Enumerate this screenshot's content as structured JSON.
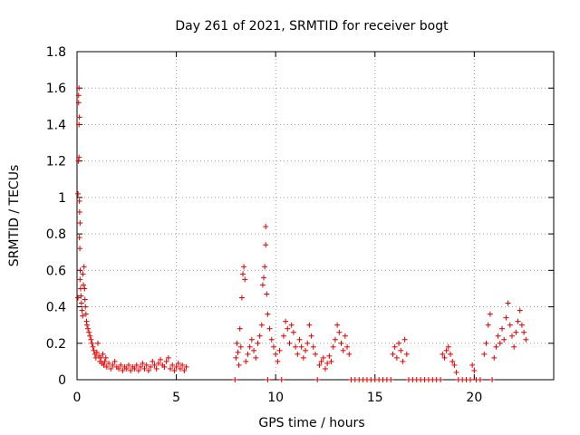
{
  "chart_data": {
    "type": "scatter",
    "title": "Day 261 of 2021, SRMTID for receiver bogt",
    "xlabel": "GPS time / hours",
    "ylabel": "SRMTID / TECUs",
    "xlim": [
      0,
      24
    ],
    "ylim": [
      0,
      1.8
    ],
    "xticks": [
      0,
      5,
      10,
      15,
      20
    ],
    "xtick_labels": [
      "0",
      "5",
      "10",
      "15",
      "20"
    ],
    "yticks": [
      0,
      0.2,
      0.4,
      0.6,
      0.8,
      1,
      1.2,
      1.4,
      1.6,
      1.8
    ],
    "ytick_labels": [
      "0",
      "0.2",
      "0.4",
      "0.6",
      "0.8",
      "1",
      "1.2",
      "1.4",
      "1.6",
      "1.8"
    ],
    "grid": true,
    "marker": "+",
    "series": [
      {
        "name": "SRMTID",
        "color": "#e00000",
        "points": [
          [
            0.05,
            0.45
          ],
          [
            0.05,
            1.02
          ],
          [
            0.07,
            1.2
          ],
          [
            0.08,
            1.52
          ],
          [
            0.08,
            1.56
          ],
          [
            0.1,
            1.6
          ],
          [
            0.1,
            1.4
          ],
          [
            0.12,
            1.44
          ],
          [
            0.1,
            1.22
          ],
          [
            0.12,
            0.98
          ],
          [
            0.13,
            0.92
          ],
          [
            0.15,
            0.86
          ],
          [
            0.12,
            0.78
          ],
          [
            0.14,
            0.72
          ],
          [
            0.16,
            0.6
          ],
          [
            0.15,
            0.55
          ],
          [
            0.18,
            0.5
          ],
          [
            0.2,
            0.46
          ],
          [
            0.22,
            0.42
          ],
          [
            0.25,
            0.38
          ],
          [
            0.28,
            0.35
          ],
          [
            0.3,
            0.58
          ],
          [
            0.32,
            0.52
          ],
          [
            0.35,
            0.62
          ],
          [
            0.38,
            0.5
          ],
          [
            0.4,
            0.44
          ],
          [
            0.42,
            0.4
          ],
          [
            0.45,
            0.36
          ],
          [
            0.48,
            0.32
          ],
          [
            0.5,
            0.3
          ],
          [
            0.55,
            0.28
          ],
          [
            0.6,
            0.26
          ],
          [
            0.65,
            0.24
          ],
          [
            0.7,
            0.22
          ],
          [
            0.75,
            0.2
          ],
          [
            0.8,
            0.18
          ],
          [
            0.85,
            0.16
          ],
          [
            0.9,
            0.14
          ],
          [
            0.95,
            0.12
          ],
          [
            1.0,
            0.15
          ],
          [
            1.05,
            0.2
          ],
          [
            1.1,
            0.13
          ],
          [
            1.15,
            0.1
          ],
          [
            1.2,
            0.12
          ],
          [
            1.25,
            0.09
          ],
          [
            1.3,
            0.14
          ],
          [
            1.35,
            0.08
          ],
          [
            1.4,
            0.1
          ],
          [
            1.45,
            0.12
          ],
          [
            1.5,
            0.07
          ],
          [
            1.6,
            0.09
          ],
          [
            1.7,
            0.06
          ],
          [
            1.8,
            0.08
          ],
          [
            1.9,
            0.1
          ],
          [
            2.0,
            0.07
          ],
          [
            2.1,
            0.06
          ],
          [
            2.2,
            0.08
          ],
          [
            2.3,
            0.05
          ],
          [
            2.4,
            0.07
          ],
          [
            2.5,
            0.06
          ],
          [
            2.6,
            0.08
          ],
          [
            2.7,
            0.05
          ],
          [
            2.8,
            0.07
          ],
          [
            2.9,
            0.06
          ],
          [
            3.0,
            0.08
          ],
          [
            3.1,
            0.05
          ],
          [
            3.2,
            0.07
          ],
          [
            3.3,
            0.09
          ],
          [
            3.4,
            0.06
          ],
          [
            3.5,
            0.08
          ],
          [
            3.6,
            0.05
          ],
          [
            3.7,
            0.07
          ],
          [
            3.8,
            0.1
          ],
          [
            3.9,
            0.08
          ],
          [
            4.0,
            0.06
          ],
          [
            4.1,
            0.09
          ],
          [
            4.2,
            0.11
          ],
          [
            4.3,
            0.08
          ],
          [
            4.4,
            0.07
          ],
          [
            4.5,
            0.1
          ],
          [
            4.6,
            0.12
          ],
          [
            4.7,
            0.06
          ],
          [
            4.8,
            0.08
          ],
          [
            4.9,
            0.05
          ],
          [
            5.0,
            0.07
          ],
          [
            5.1,
            0.09
          ],
          [
            5.2,
            0.06
          ],
          [
            5.3,
            0.08
          ],
          [
            5.4,
            0.05
          ],
          [
            5.5,
            0.07
          ],
          [
            7.95,
            0.0
          ],
          [
            8.0,
            0.12
          ],
          [
            8.05,
            0.2
          ],
          [
            8.1,
            0.15
          ],
          [
            8.15,
            0.08
          ],
          [
            8.2,
            0.28
          ],
          [
            8.25,
            0.18
          ],
          [
            8.3,
            0.45
          ],
          [
            8.35,
            0.58
          ],
          [
            8.4,
            0.62
          ],
          [
            8.45,
            0.55
          ],
          [
            8.5,
            0.1
          ],
          [
            8.6,
            0.14
          ],
          [
            8.7,
            0.18
          ],
          [
            8.8,
            0.22
          ],
          [
            8.9,
            0.16
          ],
          [
            9.0,
            0.12
          ],
          [
            9.1,
            0.2
          ],
          [
            9.2,
            0.24
          ],
          [
            9.3,
            0.3
          ],
          [
            9.35,
            0.52
          ],
          [
            9.4,
            0.56
          ],
          [
            9.45,
            0.62
          ],
          [
            9.5,
            0.74
          ],
          [
            9.5,
            0.84
          ],
          [
            9.55,
            0.47
          ],
          [
            9.6,
            0.36
          ],
          [
            9.6,
            0.0
          ],
          [
            9.7,
            0.28
          ],
          [
            9.8,
            0.22
          ],
          [
            9.9,
            0.18
          ],
          [
            10.0,
            0.14
          ],
          [
            10.1,
            0.1
          ],
          [
            10.2,
            0.16
          ],
          [
            10.3,
            0.0
          ],
          [
            10.4,
            0.24
          ],
          [
            10.5,
            0.32
          ],
          [
            10.6,
            0.28
          ],
          [
            10.7,
            0.2
          ],
          [
            10.8,
            0.3
          ],
          [
            10.9,
            0.26
          ],
          [
            11.0,
            0.18
          ],
          [
            11.1,
            0.14
          ],
          [
            11.2,
            0.22
          ],
          [
            11.3,
            0.18
          ],
          [
            11.4,
            0.12
          ],
          [
            11.5,
            0.16
          ],
          [
            11.6,
            0.2
          ],
          [
            11.7,
            0.3
          ],
          [
            11.8,
            0.24
          ],
          [
            11.9,
            0.18
          ],
          [
            12.0,
            0.14
          ],
          [
            12.1,
            0.0
          ],
          [
            12.2,
            0.08
          ],
          [
            12.3,
            0.1
          ],
          [
            12.4,
            0.12
          ],
          [
            12.5,
            0.06
          ],
          [
            12.6,
            0.09
          ],
          [
            12.7,
            0.13
          ],
          [
            12.8,
            0.1
          ],
          [
            12.9,
            0.18
          ],
          [
            13.0,
            0.22
          ],
          [
            13.1,
            0.3
          ],
          [
            13.2,
            0.26
          ],
          [
            13.3,
            0.2
          ],
          [
            13.4,
            0.16
          ],
          [
            13.5,
            0.24
          ],
          [
            13.6,
            0.18
          ],
          [
            13.7,
            0.14
          ],
          [
            13.8,
            0.0
          ],
          [
            14.0,
            0.0
          ],
          [
            14.2,
            0.0
          ],
          [
            14.4,
            0.0
          ],
          [
            14.6,
            0.0
          ],
          [
            14.8,
            0.0
          ],
          [
            15.0,
            0.0
          ],
          [
            15.2,
            0.0
          ],
          [
            15.4,
            0.0
          ],
          [
            15.6,
            0.0
          ],
          [
            15.8,
            0.0
          ],
          [
            15.9,
            0.14
          ],
          [
            16.0,
            0.18
          ],
          [
            16.1,
            0.12
          ],
          [
            16.2,
            0.2
          ],
          [
            16.3,
            0.16
          ],
          [
            16.4,
            0.1
          ],
          [
            16.5,
            0.22
          ],
          [
            16.6,
            0.14
          ],
          [
            16.7,
            0.0
          ],
          [
            16.9,
            0.0
          ],
          [
            17.1,
            0.0
          ],
          [
            17.3,
            0.0
          ],
          [
            17.5,
            0.0
          ],
          [
            17.7,
            0.0
          ],
          [
            17.9,
            0.0
          ],
          [
            18.1,
            0.0
          ],
          [
            18.3,
            0.0
          ],
          [
            18.4,
            0.14
          ],
          [
            18.5,
            0.12
          ],
          [
            18.6,
            0.16
          ],
          [
            18.7,
            0.18
          ],
          [
            18.8,
            0.14
          ],
          [
            18.9,
            0.1
          ],
          [
            19.0,
            0.08
          ],
          [
            19.1,
            0.04
          ],
          [
            19.2,
            0.0
          ],
          [
            19.4,
            0.0
          ],
          [
            19.6,
            0.0
          ],
          [
            19.8,
            0.0
          ],
          [
            19.9,
            0.08
          ],
          [
            20.0,
            0.05
          ],
          [
            20.1,
            0.0
          ],
          [
            20.3,
            0.0
          ],
          [
            20.5,
            0.14
          ],
          [
            20.6,
            0.2
          ],
          [
            20.7,
            0.3
          ],
          [
            20.8,
            0.36
          ],
          [
            20.9,
            0.0
          ],
          [
            21.0,
            0.12
          ],
          [
            21.1,
            0.18
          ],
          [
            21.2,
            0.24
          ],
          [
            21.3,
            0.2
          ],
          [
            21.4,
            0.28
          ],
          [
            21.5,
            0.22
          ],
          [
            21.6,
            0.34
          ],
          [
            21.7,
            0.42
          ],
          [
            21.8,
            0.3
          ],
          [
            21.9,
            0.24
          ],
          [
            22.0,
            0.18
          ],
          [
            22.1,
            0.26
          ],
          [
            22.2,
            0.32
          ],
          [
            22.3,
            0.38
          ],
          [
            22.4,
            0.3
          ],
          [
            22.5,
            0.26
          ],
          [
            22.6,
            0.22
          ]
        ]
      }
    ]
  }
}
